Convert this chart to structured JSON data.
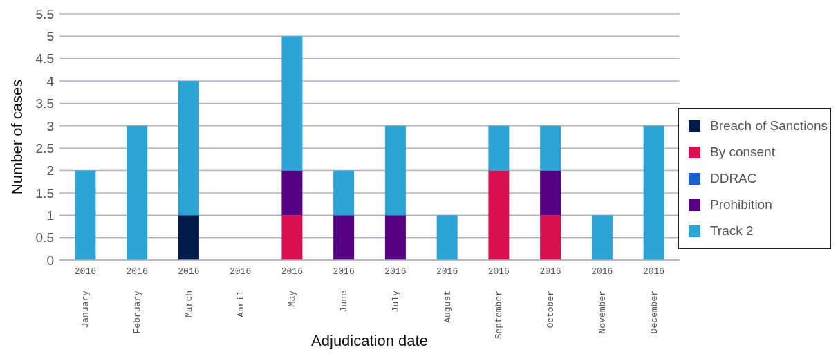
{
  "chart_data": {
    "type": "bar",
    "stacked": true,
    "xlabel": "Adjudication date",
    "ylabel": "Number of cases",
    "categories": [
      "2016 January",
      "2016 February",
      "2016 March",
      "2016 April",
      "2016 May",
      "2016 June",
      "2016 July",
      "2016 August",
      "2016 September",
      "2016 October",
      "2016 November",
      "2016 December"
    ],
    "series": [
      {
        "name": "Breach of Sanctions",
        "color": "#001a4a",
        "values": [
          0,
          0,
          1,
          0,
          0,
          0,
          0,
          0,
          0,
          0,
          0,
          0
        ]
      },
      {
        "name": "By consent",
        "color": "#d81050",
        "values": [
          0,
          0,
          0,
          0,
          1,
          0,
          0,
          0,
          2,
          1,
          0,
          0
        ]
      },
      {
        "name": "DDRAC",
        "color": "#1a5ed8",
        "values": [
          0,
          0,
          0,
          0,
          0,
          0,
          0,
          0,
          0,
          0,
          0,
          0
        ]
      },
      {
        "name": "Prohibition",
        "color": "#560083",
        "values": [
          0,
          0,
          0,
          0,
          1,
          1,
          1,
          0,
          0,
          1,
          0,
          0
        ]
      },
      {
        "name": "Track 2",
        "color": "#2ea3d5",
        "values": [
          2,
          3,
          3,
          0,
          3,
          1,
          2,
          1,
          1,
          1,
          1,
          3
        ]
      }
    ],
    "ylim": [
      0,
      5.5
    ],
    "yticks": [
      0,
      0.5,
      1,
      1.5,
      2,
      2.5,
      3,
      3.5,
      4,
      4.5,
      5,
      5.5
    ],
    "grid": "y",
    "legend": "right"
  }
}
